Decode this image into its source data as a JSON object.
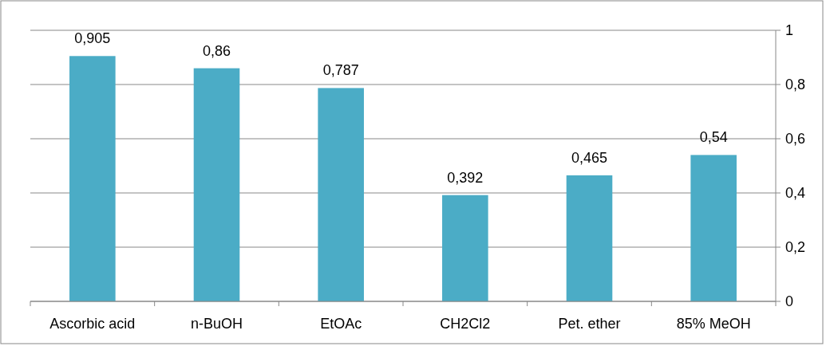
{
  "chart_data": {
    "type": "bar",
    "categories": [
      "Ascorbic acid",
      "n-BuOH",
      "EtOAc",
      "CH2Cl2",
      "Pet. ether",
      "85% MeOH"
    ],
    "values": [
      0.905,
      0.86,
      0.787,
      0.392,
      0.465,
      0.54
    ],
    "value_labels": [
      "0,905",
      "0,86",
      "0,787",
      "0,392",
      "0,465",
      "0,54"
    ],
    "color": "#4bacc6",
    "ylim": [
      0,
      1
    ],
    "yticks": [
      {
        "value": 0,
        "label": "0"
      },
      {
        "value": 0.2,
        "label": "0,2"
      },
      {
        "value": 0.4,
        "label": "0,4"
      },
      {
        "value": 0.6,
        "label": "0,6"
      },
      {
        "value": 0.8,
        "label": "0,8"
      },
      {
        "value": 1,
        "label": "1"
      }
    ],
    "grid": "y"
  }
}
